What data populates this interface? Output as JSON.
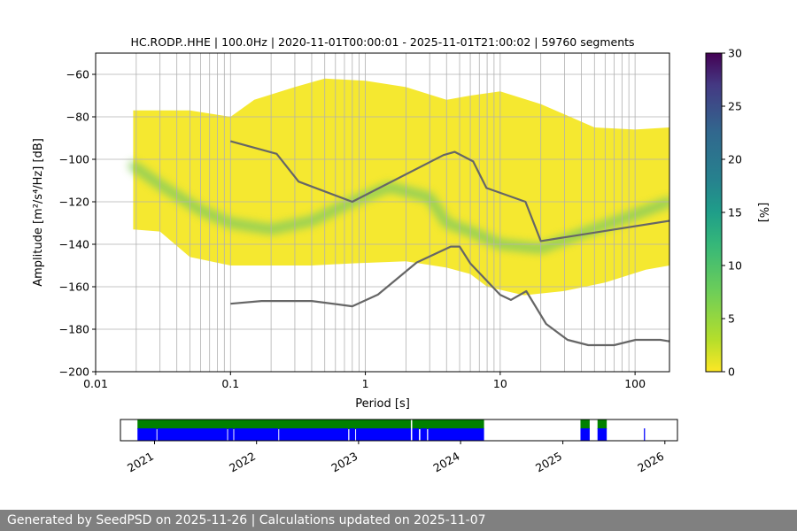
{
  "chart_data": [
    {
      "type": "heatmap",
      "title": "HC.RODP..HHE | 100.0Hz | 2020-11-01T00:00:01 - 2025-11-01T21:00:02 | 59760 segments",
      "xlabel": "Period [s]",
      "ylabel": "Amplitude [m²/s⁴/Hz] [dB]",
      "x_scale": "log",
      "xlim": [
        0.01,
        180
      ],
      "ylim": [
        -200,
        -50
      ],
      "x_ticks": [
        0.01,
        0.1,
        1,
        10,
        100
      ],
      "x_tick_labels": [
        "0.01",
        "0.1",
        "1",
        "10",
        "100"
      ],
      "y_ticks": [
        -60,
        -80,
        -100,
        -120,
        -140,
        -160,
        -180,
        -200
      ],
      "y_tick_labels": [
        "−60",
        "−80",
        "−100",
        "−120",
        "−140",
        "−160",
        "−180",
        "−200"
      ],
      "grid": true,
      "colormap": "viridis_r",
      "colorbar": {
        "label": "[%]",
        "range": [
          0,
          30
        ],
        "ticks": [
          0,
          5,
          10,
          15,
          20,
          25,
          30
        ],
        "tick_labels": [
          "0",
          "5",
          "10",
          "15",
          "20",
          "25",
          "30"
        ]
      },
      "psd_envelope": {
        "period_range": [
          0.019,
          180
        ],
        "upper_edge": [
          [
            0.019,
            -77
          ],
          [
            0.05,
            -77
          ],
          [
            0.1,
            -80
          ],
          [
            0.15,
            -72
          ],
          [
            0.3,
            -66
          ],
          [
            0.5,
            -62
          ],
          [
            1,
            -63
          ],
          [
            2,
            -66
          ],
          [
            4,
            -72
          ],
          [
            6,
            -70
          ],
          [
            10,
            -68
          ],
          [
            20,
            -74
          ],
          [
            50,
            -85
          ],
          [
            100,
            -86
          ],
          [
            180,
            -85
          ]
        ],
        "lower_edge": [
          [
            0.019,
            -133
          ],
          [
            0.03,
            -134
          ],
          [
            0.05,
            -146
          ],
          [
            0.1,
            -150
          ],
          [
            0.2,
            -150
          ],
          [
            0.4,
            -150
          ],
          [
            0.8,
            -149
          ],
          [
            2,
            -148
          ],
          [
            4,
            -151
          ],
          [
            6,
            -154
          ],
          [
            8,
            -160
          ],
          [
            15,
            -164
          ],
          [
            30,
            -162
          ],
          [
            60,
            -158
          ],
          [
            120,
            -152
          ],
          [
            180,
            -150
          ]
        ]
      },
      "mode_curve": [
        [
          0.019,
          -103
        ],
        [
          0.03,
          -112
        ],
        [
          0.06,
          -124
        ],
        [
          0.1,
          -130
        ],
        [
          0.2,
          -133
        ],
        [
          0.4,
          -129
        ],
        [
          0.8,
          -120
        ],
        [
          1.5,
          -113
        ],
        [
          3,
          -118
        ],
        [
          4,
          -130
        ],
        [
          6,
          -134
        ],
        [
          10,
          -140
        ],
        [
          20,
          -142
        ],
        [
          40,
          -135
        ],
        [
          100,
          -126
        ],
        [
          180,
          -120
        ]
      ],
      "series": [
        {
          "name": "NHNM",
          "x": [
            0.1,
            0.22,
            0.32,
            0.8,
            3.8,
            4.6,
            6.3,
            7.9,
            15.4,
            20,
            354.8
          ],
          "y": [
            -91.5,
            -97.4,
            -110.5,
            -120,
            -98,
            -96.5,
            -101,
            -113.5,
            -120,
            -138.5,
            -126
          ]
        },
        {
          "name": "NLNM",
          "x": [
            0.1,
            0.17,
            0.4,
            0.8,
            1.24,
            2.4,
            4.3,
            5,
            6,
            10,
            12,
            15.6,
            21.9,
            31.6,
            45,
            70,
            101,
            154,
            180
          ],
          "y": [
            -168,
            -166.7,
            -166.7,
            -169.2,
            -163.7,
            -148.6,
            -141.1,
            -141.1,
            -149,
            -163.8,
            -166.2,
            -162.1,
            -177.5,
            -185,
            -187.5,
            -187.5,
            -185,
            -185,
            -185.7
          ]
        }
      ]
    },
    {
      "type": "timeline",
      "x_range": [
        "2020-09-01",
        "2026-02-15"
      ],
      "tick_labels": [
        "2021",
        "2022",
        "2023",
        "2024",
        "2025",
        "2026"
      ],
      "tick_dates": [
        "2021-01-01",
        "2022-01-01",
        "2023-01-01",
        "2024-01-01",
        "2025-01-01",
        "2026-01-01"
      ],
      "colors": {
        "available": "#008000",
        "used": "#0000ff"
      },
      "available_spans": [
        [
          "2020-11-01",
          "2023-07-07"
        ],
        [
          "2023-07-12",
          "2024-03-25"
        ],
        [
          "2025-03-05",
          "2025-04-07"
        ],
        [
          "2025-05-05",
          "2025-06-07"
        ]
      ],
      "used_spans": [
        [
          "2020-11-01",
          "2021-01-08"
        ],
        [
          "2021-01-11",
          "2021-09-18"
        ],
        [
          "2021-09-21",
          "2021-10-10"
        ],
        [
          "2021-10-13",
          "2022-03-20"
        ],
        [
          "2022-03-23",
          "2022-11-25"
        ],
        [
          "2022-11-29",
          "2022-12-20"
        ],
        [
          "2022-12-23",
          "2023-07-07"
        ],
        [
          "2023-07-12",
          "2023-08-05"
        ],
        [
          "2023-08-10",
          "2023-09-03"
        ],
        [
          "2023-09-07",
          "2024-03-25"
        ],
        [
          "2025-03-05",
          "2025-04-07"
        ],
        [
          "2025-05-05",
          "2025-06-07"
        ],
        [
          "2025-10-18",
          "2025-10-22"
        ]
      ]
    }
  ],
  "footer": "Generated by SeedPSD on 2025-11-26 | Calculations updated on 2025-11-07"
}
